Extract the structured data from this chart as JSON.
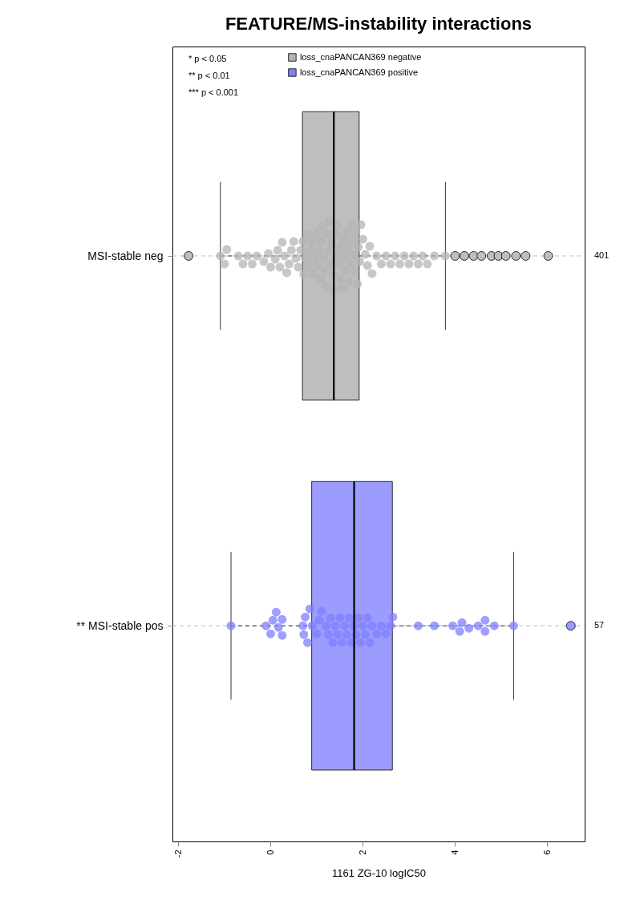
{
  "chart_data": {
    "type": "box",
    "orientation": "horizontal",
    "title": "FEATURE/MS-instability interactions",
    "xlabel": "1161 ZG-10 logIC50",
    "categories": [
      "MSI-stable neg",
      "** MSI-stable pos"
    ],
    "colors": [
      "#bebebe",
      "#9c9cff"
    ],
    "boxes": [
      {
        "low": -1.09,
        "q1": 0.69,
        "median": 1.37,
        "q3": 1.92,
        "high": 3.79,
        "outliers": [
          -1.78,
          4.0,
          4.2,
          4.4,
          4.57,
          4.79,
          4.94,
          5.1,
          5.32,
          5.53,
          6.02
        ]
      },
      {
        "low": -0.86,
        "q1": 0.89,
        "median": 1.81,
        "q3": 2.64,
        "high": 5.27,
        "outliers": [
          6.51
        ]
      }
    ],
    "series": [
      {
        "type": "scatter",
        "name": "loss_cnaPANCAN369 negative",
        "color": "#b4b4b4",
        "x": [
          "MSI-stable neg",
          "MSI-stable neg",
          "MSI-stable neg",
          "MSI-stable neg",
          "MSI-stable neg",
          "MSI-stable neg",
          "MSI-stable neg",
          "MSI-stable neg",
          "MSI-stable neg",
          "MSI-stable neg",
          "MSI-stable neg",
          "MSI-stable neg",
          "MSI-stable neg",
          "MSI-stable neg",
          "MSI-stable neg",
          "MSI-stable neg",
          "MSI-stable neg",
          "MSI-stable neg",
          "MSI-stable neg",
          "MSI-stable neg",
          "MSI-stable neg",
          "MSI-stable neg",
          "MSI-stable neg",
          "MSI-stable neg",
          "MSI-stable neg",
          "MSI-stable neg",
          "MSI-stable neg",
          "MSI-stable neg",
          "MSI-stable neg",
          "MSI-stable neg",
          "MSI-stable neg",
          "MSI-stable neg",
          "MSI-stable neg",
          "MSI-stable neg",
          "MSI-stable neg",
          "MSI-stable neg",
          "MSI-stable neg",
          "MSI-stable neg",
          "MSI-stable neg",
          "MSI-stable neg",
          "MSI-stable neg",
          "MSI-stable neg",
          "MSI-stable neg",
          "MSI-stable neg",
          "MSI-stable neg",
          "MSI-stable neg",
          "MSI-stable neg",
          "MSI-stable neg",
          "MSI-stable neg",
          "MSI-stable neg",
          "MSI-stable neg",
          "MSI-stable neg",
          "MSI-stable neg",
          "MSI-stable neg",
          "MSI-stable neg",
          "MSI-stable neg",
          "MSI-stable neg",
          "MSI-stable neg",
          "MSI-stable neg",
          "MSI-stable neg",
          "MSI-stable neg",
          "MSI-stable neg",
          "MSI-stable neg",
          "MSI-stable neg",
          "MSI-stable neg",
          "MSI-stable neg",
          "MSI-stable neg",
          "MSI-stable neg",
          "MSI-stable neg",
          "MSI-stable neg",
          "MSI-stable neg",
          "MSI-stable neg",
          "MSI-stable neg",
          "MSI-stable neg",
          "MSI-stable neg",
          "MSI-stable neg",
          "MSI-stable neg",
          "MSI-stable neg",
          "MSI-stable neg",
          "MSI-stable neg",
          "MSI-stable neg",
          "MSI-stable neg",
          "MSI-stable neg",
          "MSI-stable neg",
          "MSI-stable neg",
          "MSI-stable neg",
          "MSI-stable neg",
          "MSI-stable neg",
          "MSI-stable neg",
          "MSI-stable neg"
        ],
        "values": [
          -1.09,
          -1.0,
          -0.95,
          -0.7,
          -0.6,
          -0.5,
          -0.4,
          -0.3,
          -0.15,
          -0.05,
          0.0,
          0.1,
          0.15,
          0.2,
          0.25,
          0.3,
          0.35,
          0.4,
          0.45,
          0.5,
          0.55,
          0.6,
          0.65,
          0.7,
          0.72,
          0.75,
          0.8,
          0.82,
          0.85,
          0.9,
          0.92,
          0.95,
          1.0,
          1.02,
          1.05,
          1.08,
          1.1,
          1.12,
          1.15,
          1.18,
          1.2,
          1.22,
          1.25,
          1.28,
          1.3,
          1.32,
          1.35,
          1.37,
          1.4,
          1.42,
          1.45,
          1.48,
          1.5,
          1.52,
          1.55,
          1.58,
          1.6,
          1.62,
          1.65,
          1.68,
          1.7,
          1.72,
          1.75,
          1.78,
          1.8,
          1.82,
          1.85,
          1.88,
          1.9,
          1.93,
          1.96,
          2.0,
          2.05,
          2.1,
          2.15,
          2.2,
          2.3,
          2.4,
          2.5,
          2.6,
          2.7,
          2.8,
          2.9,
          3.0,
          3.1,
          3.2,
          3.3,
          3.4,
          3.55,
          3.79
        ]
      },
      {
        "type": "scatter",
        "name": "loss_cnaPANCAN369 positive",
        "color": "#7f7fff",
        "x": [
          "** MSI-stable pos",
          "** MSI-stable pos",
          "** MSI-stable pos",
          "** MSI-stable pos",
          "** MSI-stable pos",
          "** MSI-stable pos",
          "** MSI-stable pos",
          "** MSI-stable pos",
          "** MSI-stable pos",
          "** MSI-stable pos",
          "** MSI-stable pos",
          "** MSI-stable pos",
          "** MSI-stable pos",
          "** MSI-stable pos",
          "** MSI-stable pos",
          "** MSI-stable pos",
          "** MSI-stable pos",
          "** MSI-stable pos",
          "** MSI-stable pos",
          "** MSI-stable pos",
          "** MSI-stable pos",
          "** MSI-stable pos",
          "** MSI-stable pos",
          "** MSI-stable pos",
          "** MSI-stable pos",
          "** MSI-stable pos",
          "** MSI-stable pos",
          "** MSI-stable pos",
          "** MSI-stable pos",
          "** MSI-stable pos",
          "** MSI-stable pos",
          "** MSI-stable pos",
          "** MSI-stable pos",
          "** MSI-stable pos",
          "** MSI-stable pos",
          "** MSI-stable pos",
          "** MSI-stable pos",
          "** MSI-stable pos",
          "** MSI-stable pos",
          "** MSI-stable pos",
          "** MSI-stable pos",
          "** MSI-stable pos",
          "** MSI-stable pos",
          "** MSI-stable pos",
          "** MSI-stable pos",
          "** MSI-stable pos",
          "** MSI-stable pos",
          "** MSI-stable pos",
          "** MSI-stable pos",
          "** MSI-stable pos",
          "** MSI-stable pos",
          "** MSI-stable pos",
          "** MSI-stable pos",
          "** MSI-stable pos"
        ],
        "values": [
          -0.86,
          -0.1,
          0.0,
          0.05,
          0.12,
          0.17,
          0.25,
          0.25,
          0.7,
          0.72,
          0.75,
          0.8,
          0.85,
          0.9,
          1.0,
          1.05,
          1.1,
          1.2,
          1.25,
          1.3,
          1.35,
          1.4,
          1.45,
          1.5,
          1.55,
          1.6,
          1.65,
          1.7,
          1.75,
          1.8,
          1.85,
          1.9,
          1.95,
          2.0,
          2.05,
          2.1,
          2.15,
          2.2,
          2.3,
          2.4,
          2.5,
          2.6,
          2.65,
          3.2,
          3.55,
          3.95,
          4.1,
          4.15,
          4.3,
          4.5,
          4.65,
          4.65,
          4.85,
          5.27
        ]
      }
    ],
    "xlim": [
      -2.13,
      6.81
    ],
    "xticks": [
      -2,
      0,
      2,
      4,
      6
    ],
    "grid": "y",
    "legend": "top",
    "y2_categories": [
      "401",
      "57"
    ],
    "annotations": [
      "* p < 0.05",
      "** p < 0.01",
      "*** p < 0.001"
    ]
  }
}
